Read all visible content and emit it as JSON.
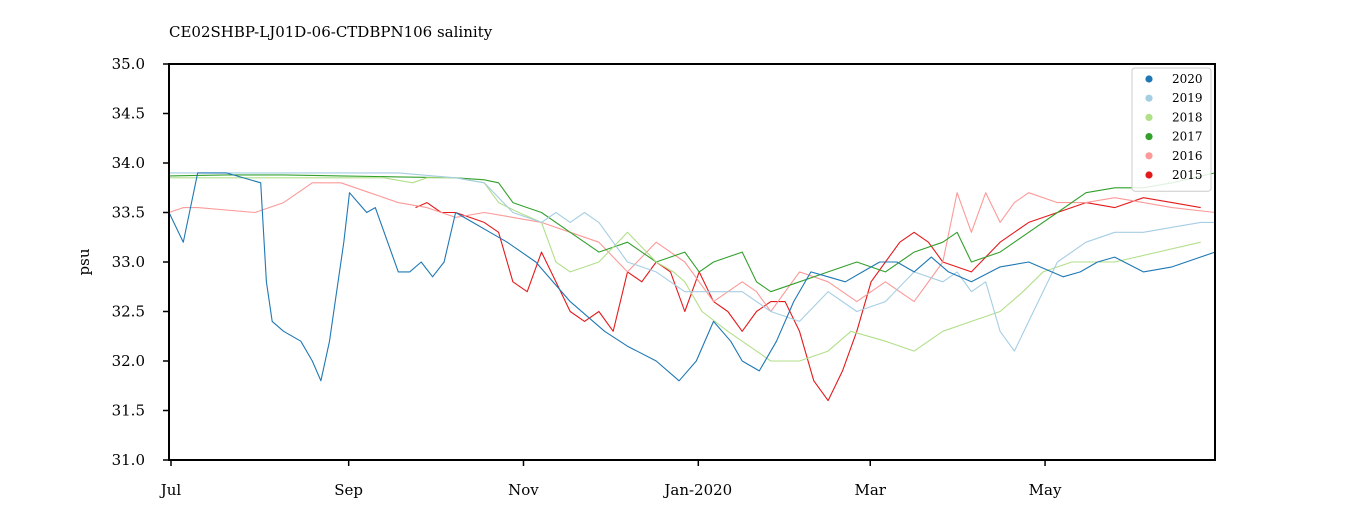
{
  "chart_data": {
    "type": "line",
    "title": "CE02SHBP-LJ01D-06-CTDBPN106 salinity",
    "xlabel": "",
    "ylabel": "psu",
    "ylim": [
      31.0,
      35.0
    ],
    "yticks": [
      31.0,
      31.5,
      32.0,
      32.5,
      33.0,
      33.5,
      34.0,
      34.5,
      35.0
    ],
    "ytick_labels": [
      "31.0",
      "31.5",
      "32.0",
      "32.5",
      "33.0",
      "33.5",
      "34.0",
      "34.5",
      "35.0"
    ],
    "xlim_days": [
      0,
      365
    ],
    "xticks": [
      {
        "day": 0,
        "label": "Jul"
      },
      {
        "day": 62,
        "label": "Sep"
      },
      {
        "day": 123,
        "label": "Nov"
      },
      {
        "day": 184,
        "label": "Jan-2020"
      },
      {
        "day": 244,
        "label": "Mar"
      },
      {
        "day": 305,
        "label": "May"
      }
    ],
    "legend_position": "top-right",
    "grid": false,
    "series": [
      {
        "name": "2020",
        "color": "#1f78b4",
        "x": [
          0,
          5,
          10,
          20,
          32,
          34,
          36,
          40,
          46,
          50,
          53,
          56,
          58,
          61,
          63,
          66,
          69,
          72,
          80,
          84,
          88,
          92,
          96,
          100,
          106,
          112,
          118,
          128,
          140,
          152,
          160,
          170,
          178,
          184,
          190,
          196,
          200,
          206,
          212,
          218,
          224,
          230,
          236,
          242,
          248,
          254,
          260,
          266,
          272,
          280,
          290,
          300,
          312,
          318,
          324,
          330,
          340,
          350,
          365
        ],
        "y": [
          33.5,
          33.2,
          33.9,
          33.9,
          33.8,
          32.8,
          32.4,
          32.3,
          32.2,
          32.0,
          31.8,
          32.2,
          32.6,
          33.2,
          33.7,
          33.6,
          33.5,
          33.55,
          32.9,
          32.9,
          33.0,
          32.85,
          33.0,
          33.5,
          33.4,
          33.3,
          33.2,
          33.0,
          32.6,
          32.3,
          32.15,
          32.0,
          31.8,
          32.0,
          32.4,
          32.2,
          32.0,
          31.9,
          32.2,
          32.6,
          32.9,
          32.85,
          32.8,
          32.9,
          33.0,
          33.0,
          32.9,
          33.05,
          32.9,
          32.8,
          32.95,
          33.0,
          32.85,
          32.9,
          33.0,
          33.05,
          32.9,
          32.95,
          33.1
        ]
      },
      {
        "name": "2019",
        "color": "#a6cee3",
        "x": [
          0,
          10,
          20,
          40,
          60,
          80,
          100,
          110,
          120,
          130,
          135,
          140,
          145,
          150,
          160,
          170,
          180,
          190,
          200,
          210,
          220,
          230,
          240,
          250,
          260,
          270,
          275,
          280,
          285,
          290,
          295,
          300,
          310,
          320,
          330,
          340,
          350,
          360,
          365
        ],
        "y": [
          33.9,
          33.9,
          33.9,
          33.9,
          33.9,
          33.9,
          33.85,
          33.8,
          33.5,
          33.4,
          33.5,
          33.4,
          33.5,
          33.4,
          33.0,
          32.9,
          32.7,
          32.7,
          32.7,
          32.5,
          32.4,
          32.7,
          32.5,
          32.6,
          32.9,
          32.8,
          32.9,
          32.7,
          32.8,
          32.3,
          32.1,
          32.4,
          33.0,
          33.2,
          33.3,
          33.3,
          33.35,
          33.4,
          33.4
        ]
      },
      {
        "name": "2018",
        "color": "#b2df8a",
        "x": [
          0,
          20,
          40,
          60,
          75,
          85,
          90,
          100,
          110,
          115,
          122,
          130,
          135,
          140,
          150,
          160,
          170,
          176,
          180,
          186,
          195,
          205,
          210,
          220,
          230,
          238,
          250,
          260,
          270,
          280,
          290,
          298,
          305,
          315,
          330,
          345,
          360
        ],
        "y": [
          33.85,
          33.85,
          33.85,
          33.85,
          33.85,
          33.8,
          33.85,
          33.85,
          33.8,
          33.6,
          33.5,
          33.4,
          33.0,
          32.9,
          33.0,
          33.3,
          33.0,
          32.9,
          32.8,
          32.5,
          32.3,
          32.1,
          32.0,
          32.0,
          32.1,
          32.3,
          32.2,
          32.1,
          32.3,
          32.4,
          32.5,
          32.7,
          32.9,
          33.0,
          33.0,
          33.1,
          33.2
        ]
      },
      {
        "name": "2017",
        "color": "#33a02c",
        "x": [
          0,
          20,
          40,
          60,
          80,
          100,
          110,
          115,
          120,
          125,
          130,
          140,
          150,
          160,
          170,
          180,
          185,
          190,
          200,
          205,
          210,
          220,
          230,
          240,
          250,
          260,
          270,
          275,
          280,
          290,
          295,
          300,
          310,
          320,
          330,
          340,
          350,
          365
        ],
        "y": [
          33.87,
          33.88,
          33.88,
          33.87,
          33.86,
          33.85,
          33.83,
          33.8,
          33.6,
          33.55,
          33.5,
          33.3,
          33.1,
          33.2,
          33.0,
          33.1,
          32.9,
          33.0,
          33.1,
          32.8,
          32.7,
          32.8,
          32.9,
          33.0,
          32.9,
          33.1,
          33.2,
          33.3,
          33.0,
          33.1,
          33.2,
          33.3,
          33.5,
          33.7,
          33.75,
          33.75,
          33.8,
          33.9
        ]
      },
      {
        "name": "2016",
        "color": "#fb9a99",
        "x": [
          0,
          5,
          10,
          30,
          40,
          50,
          60,
          70,
          80,
          90,
          100,
          110,
          120,
          130,
          140,
          150,
          160,
          170,
          180,
          190,
          200,
          205,
          210,
          220,
          230,
          240,
          250,
          260,
          270,
          275,
          280,
          285,
          290,
          295,
          300,
          310,
          320,
          330,
          340,
          350,
          365
        ],
        "y": [
          33.5,
          33.55,
          33.55,
          33.5,
          33.6,
          33.8,
          33.8,
          33.7,
          33.6,
          33.55,
          33.45,
          33.5,
          33.45,
          33.4,
          33.3,
          33.2,
          32.9,
          33.2,
          33.0,
          32.6,
          32.8,
          32.7,
          32.5,
          32.9,
          32.8,
          32.6,
          32.8,
          32.6,
          33.0,
          33.7,
          33.3,
          33.7,
          33.4,
          33.6,
          33.7,
          33.6,
          33.6,
          33.65,
          33.6,
          33.55,
          33.5
        ]
      },
      {
        "name": "2015",
        "color": "#e31a1c",
        "x": [
          86,
          90,
          95,
          100,
          105,
          110,
          115,
          120,
          125,
          130,
          135,
          140,
          145,
          150,
          155,
          160,
          165,
          170,
          175,
          180,
          185,
          190,
          195,
          200,
          205,
          210,
          215,
          220,
          225,
          230,
          235,
          240,
          245,
          250,
          255,
          260,
          265,
          270,
          280,
          290,
          300,
          310,
          320,
          330,
          340,
          350,
          360
        ],
        "y": [
          33.55,
          33.6,
          33.5,
          33.5,
          33.45,
          33.4,
          33.3,
          32.8,
          32.7,
          33.1,
          32.8,
          32.5,
          32.4,
          32.5,
          32.3,
          32.9,
          32.8,
          33.0,
          32.9,
          32.5,
          32.9,
          32.6,
          32.5,
          32.3,
          32.5,
          32.6,
          32.6,
          32.3,
          31.8,
          31.6,
          31.9,
          32.3,
          32.8,
          33.0,
          33.2,
          33.3,
          33.2,
          33.0,
          32.9,
          33.2,
          33.4,
          33.5,
          33.6,
          33.55,
          33.65,
          33.6,
          33.55
        ]
      }
    ]
  }
}
